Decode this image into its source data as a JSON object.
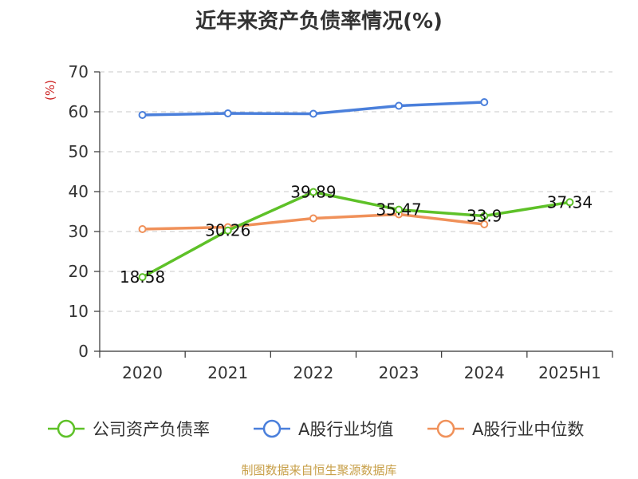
{
  "chart_data": {
    "type": "line",
    "title": "近年来资产负债率情况(%)",
    "ylabel": "(%)",
    "xlabel": "",
    "ylim": [
      0,
      70
    ],
    "yticks": [
      0,
      10,
      20,
      30,
      40,
      50,
      60,
      70
    ],
    "grid": true,
    "legend_position": "bottom",
    "categories": [
      "2020",
      "2021",
      "2022",
      "2023",
      "2024",
      "2025H1"
    ],
    "series": [
      {
        "name": "公司资产负债率",
        "color": "#5ec128",
        "values": [
          18.58,
          30.26,
          39.89,
          35.47,
          33.9,
          37.34
        ],
        "labels": [
          "18.58",
          "30.26",
          "39.89",
          "35.47",
          "33.9",
          "37.34"
        ]
      },
      {
        "name": "A股行业均值",
        "color": "#4a7fdb",
        "values": [
          59.2,
          59.6,
          59.5,
          61.5,
          62.4,
          null
        ]
      },
      {
        "name": "A股行业中位数",
        "color": "#f0915a",
        "values": [
          30.6,
          31.1,
          33.3,
          34.3,
          31.8,
          null
        ]
      }
    ]
  },
  "footer": {
    "source": "制图数据来自恒生聚源数据库"
  }
}
